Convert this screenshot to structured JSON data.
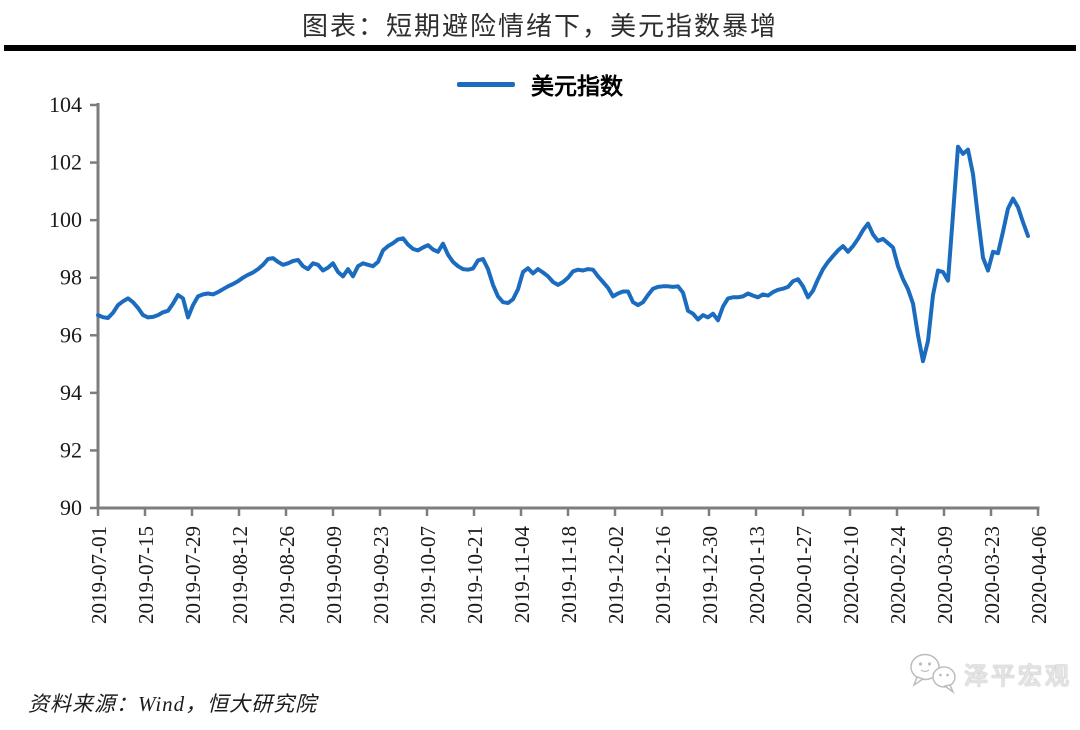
{
  "title": "图表：短期避险情绪下，美元指数暴增",
  "legend": {
    "label": "美元指数"
  },
  "source": "资料来源：Wind，恒大研究院",
  "watermark": {
    "label": "泽平宏观",
    "icon": "wechat-chat-bubbles-icon"
  },
  "colors": {
    "line": "#1B6CBF",
    "axis": "#7d7d7d",
    "tick_label": "#1a1a1a",
    "rule": "#000000",
    "watermark_text": "#e3e3e3"
  },
  "chart_data": {
    "type": "line",
    "title": "美元指数",
    "xlabel": "",
    "ylabel": "",
    "ylim": [
      90,
      104
    ],
    "y_ticks": [
      90,
      92,
      94,
      96,
      98,
      100,
      102,
      104
    ],
    "grid": false,
    "legend_position": "top-center",
    "x_tick_labels": [
      "2019-07-01",
      "2019-07-15",
      "2019-07-29",
      "2019-08-12",
      "2019-08-26",
      "2019-09-09",
      "2019-09-23",
      "2019-10-07",
      "2019-10-21",
      "2019-11-04",
      "2019-11-18",
      "2019-12-02",
      "2019-12-16",
      "2019-12-30",
      "2020-01-13",
      "2020-01-27",
      "2020-02-10",
      "2020-02-24",
      "2020-03-09",
      "2020-03-23",
      "2020-04-06"
    ],
    "series": [
      {
        "name": "美元指数",
        "values": [
          96.7,
          96.63,
          96.6,
          96.78,
          97.05,
          97.18,
          97.28,
          97.15,
          96.95,
          96.7,
          96.62,
          96.64,
          96.7,
          96.8,
          96.85,
          97.1,
          97.4,
          97.28,
          96.62,
          97.05,
          97.35,
          97.42,
          97.45,
          97.42,
          97.5,
          97.6,
          97.7,
          97.78,
          97.88,
          98.0,
          98.1,
          98.18,
          98.3,
          98.45,
          98.65,
          98.68,
          98.55,
          98.45,
          98.5,
          98.58,
          98.62,
          98.4,
          98.3,
          98.5,
          98.45,
          98.25,
          98.35,
          98.5,
          98.2,
          98.05,
          98.3,
          98.05,
          98.4,
          98.5,
          98.45,
          98.4,
          98.55,
          98.95,
          99.1,
          99.2,
          99.33,
          99.37,
          99.15,
          99.0,
          98.95,
          99.05,
          99.13,
          98.98,
          98.9,
          99.18,
          98.8,
          98.55,
          98.4,
          98.3,
          98.28,
          98.32,
          98.6,
          98.65,
          98.3,
          97.75,
          97.35,
          97.15,
          97.12,
          97.25,
          97.6,
          98.2,
          98.33,
          98.15,
          98.3,
          98.18,
          98.05,
          97.85,
          97.75,
          97.85,
          98.0,
          98.22,
          98.28,
          98.25,
          98.3,
          98.28,
          98.05,
          97.85,
          97.65,
          97.35,
          97.45,
          97.52,
          97.52,
          97.15,
          97.05,
          97.15,
          97.4,
          97.62,
          97.68,
          97.7,
          97.7,
          97.68,
          97.7,
          97.48,
          96.85,
          96.75,
          96.55,
          96.7,
          96.62,
          96.75,
          96.52,
          97.0,
          97.28,
          97.32,
          97.32,
          97.35,
          97.45,
          97.38,
          97.32,
          97.42,
          97.38,
          97.5,
          97.58,
          97.62,
          97.68,
          97.88,
          97.95,
          97.7,
          97.32,
          97.55,
          97.95,
          98.3,
          98.55,
          98.75,
          98.95,
          99.1,
          98.9,
          99.1,
          99.35,
          99.65,
          99.88,
          99.5,
          99.28,
          99.35,
          99.2,
          99.05,
          98.4,
          97.95,
          97.6,
          97.1,
          96.0,
          95.1,
          95.8,
          97.4,
          98.25,
          98.2,
          97.9,
          100.2,
          102.55,
          102.3,
          102.45,
          101.6,
          100.1,
          98.7,
          98.25,
          98.9,
          98.85,
          99.6,
          100.4,
          100.75,
          100.45,
          99.93,
          99.45
        ]
      }
    ],
    "x_range_dates": [
      "2019-07-01",
      "2020-04-06"
    ]
  }
}
